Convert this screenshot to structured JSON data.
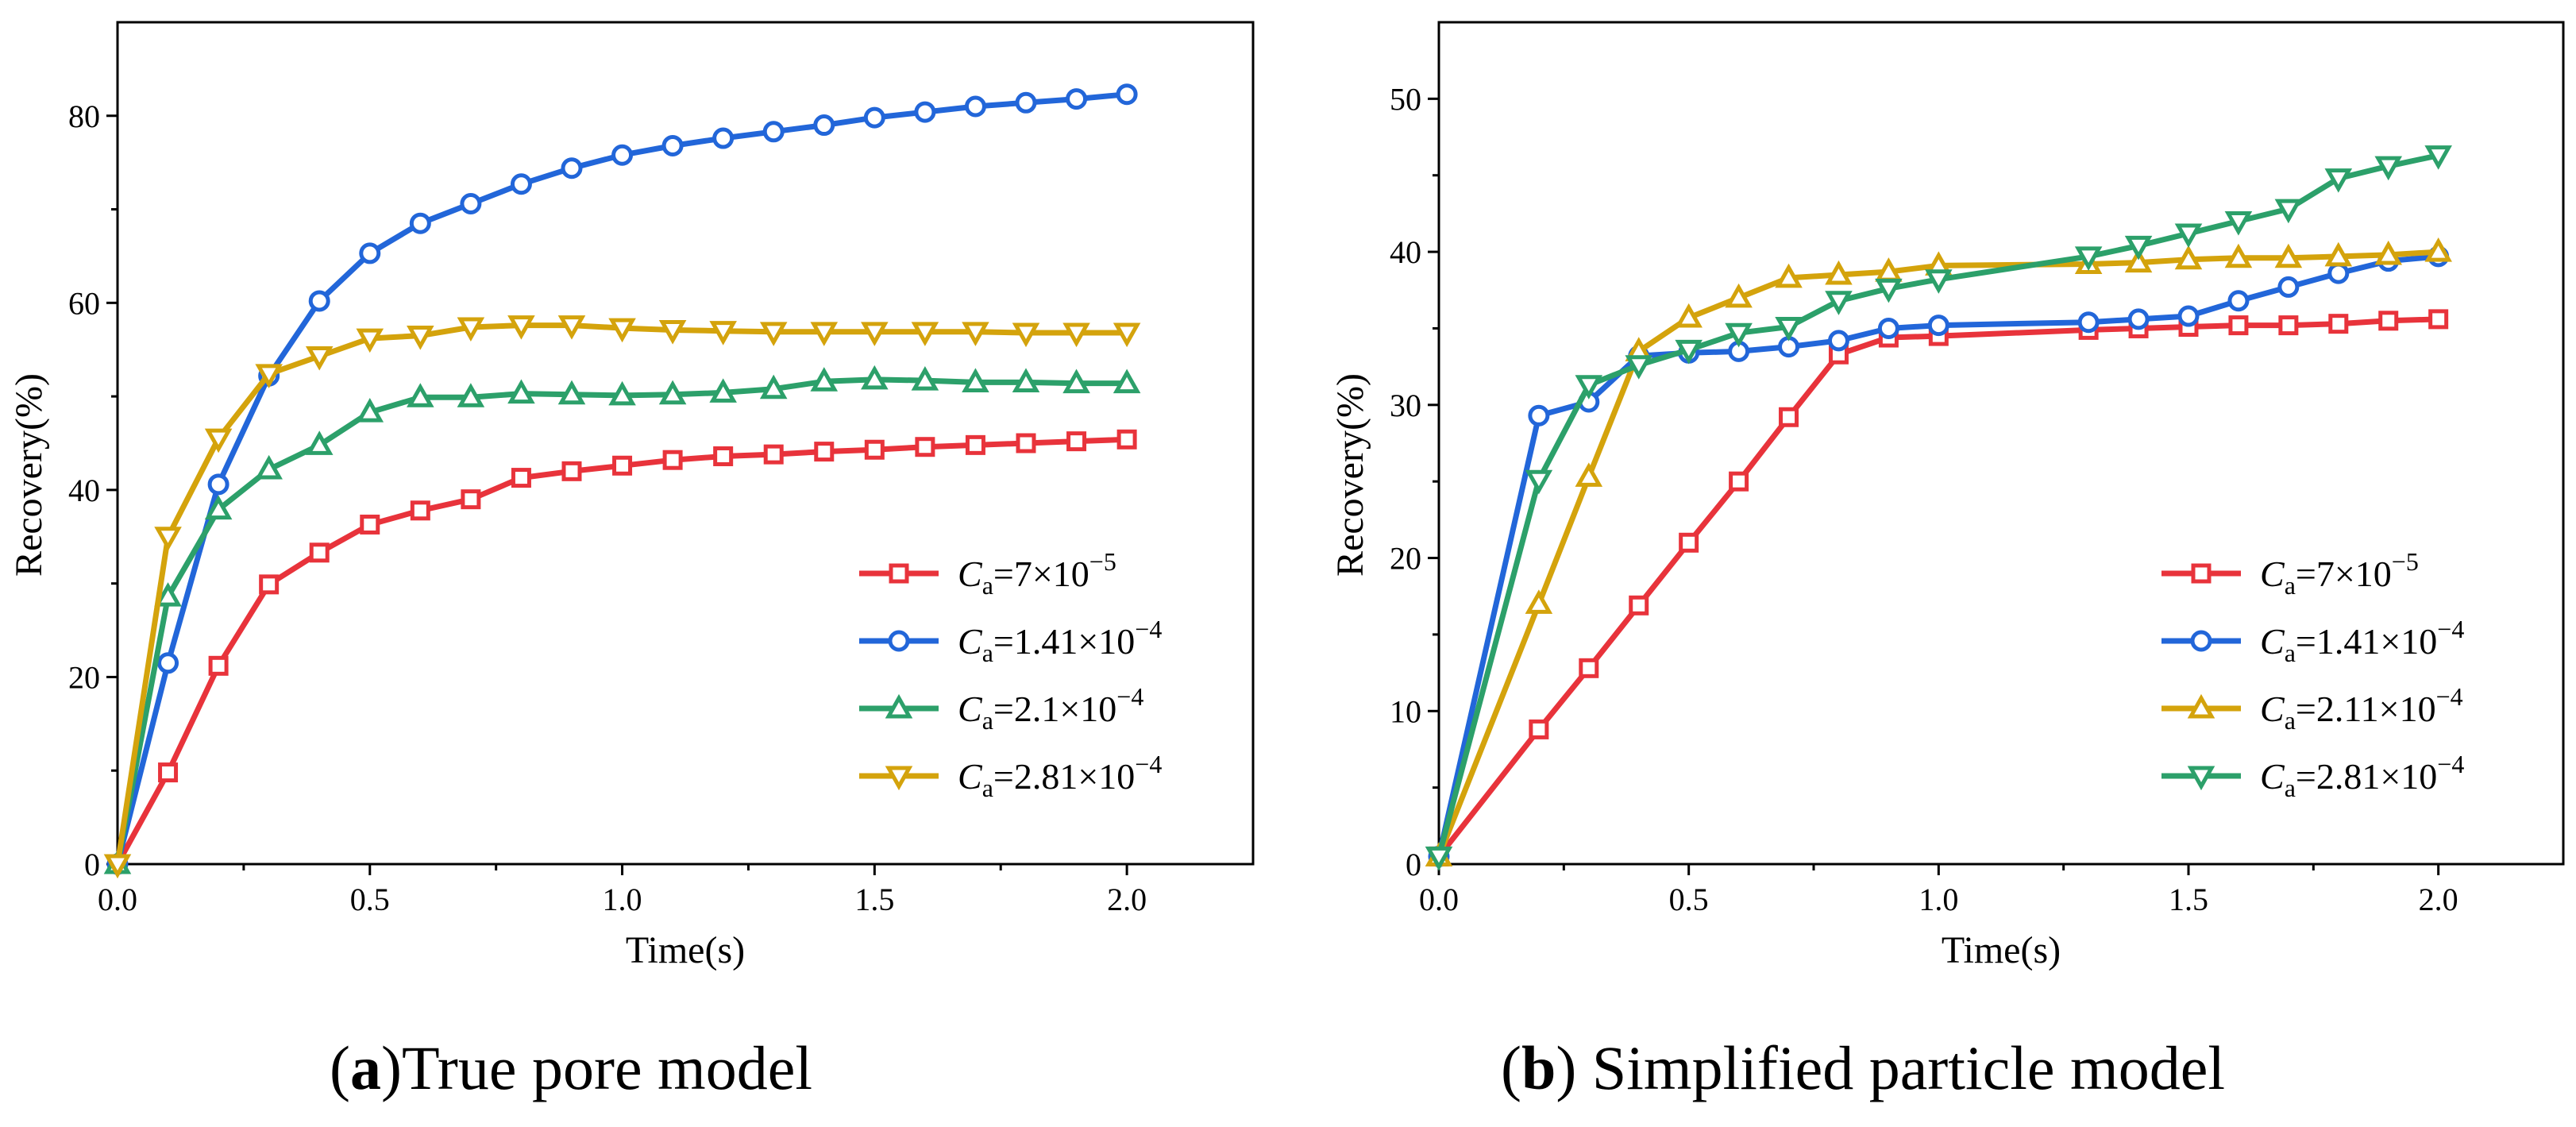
{
  "colors": {
    "red": "#E8333B",
    "blue": "#2266D9",
    "green": "#2CA06A",
    "gold": "#D4A30C"
  },
  "captions": {
    "a": {
      "letter": "a",
      "open": "(",
      "close": ")",
      "text": "True pore model"
    },
    "b": {
      "letter": "b",
      "open": "(",
      "close": ") ",
      "text": "Simplified particle model"
    }
  },
  "chart_data": [
    {
      "type": "line",
      "panel": "a",
      "title": "True pore model",
      "xlabel": "Time(s)",
      "ylabel": "Recovery(%)",
      "xlim": [
        0,
        2.25
      ],
      "ylim": [
        0,
        90
      ],
      "xticks": [
        0.0,
        0.5,
        1.0,
        1.5,
        2.0
      ],
      "xtick_labels": [
        "0.0",
        "0.5",
        "1.0",
        "1.5",
        "2.0"
      ],
      "yticks": [
        0,
        20,
        40,
        60,
        80
      ],
      "ytick_labels": [
        "0",
        "20",
        "40",
        "60",
        "80"
      ],
      "legend_position": "bottom-right",
      "series": [
        {
          "name": "Ca=7×10−5",
          "label_main": "=7×10",
          "label_exp": "−5",
          "color": "red",
          "marker": "square",
          "x": [
            0,
            0.1,
            0.2,
            0.3,
            0.4,
            0.5,
            0.6,
            0.7,
            0.8,
            0.9,
            1.0,
            1.1,
            1.2,
            1.3,
            1.4,
            1.5,
            1.6,
            1.7,
            1.8,
            1.9,
            2.0
          ],
          "y": [
            0,
            9.8,
            21.2,
            29.9,
            33.3,
            36.3,
            37.8,
            39.0,
            41.3,
            42.0,
            42.6,
            43.2,
            43.6,
            43.8,
            44.1,
            44.3,
            44.6,
            44.8,
            45.0,
            45.2,
            45.4
          ]
        },
        {
          "name": "Ca=1.41×10−4",
          "label_main": "=1.41×10",
          "label_exp": "−4",
          "color": "blue",
          "marker": "circle",
          "x": [
            0,
            0.1,
            0.2,
            0.3,
            0.4,
            0.5,
            0.6,
            0.7,
            0.8,
            0.9,
            1.0,
            1.1,
            1.2,
            1.3,
            1.4,
            1.5,
            1.6,
            1.7,
            1.8,
            1.9,
            2.0
          ],
          "y": [
            0,
            21.5,
            40.6,
            52.2,
            60.2,
            65.3,
            68.5,
            70.6,
            72.7,
            74.4,
            75.8,
            76.8,
            77.6,
            78.3,
            79.0,
            79.8,
            80.4,
            81.0,
            81.4,
            81.8,
            82.3
          ]
        },
        {
          "name": "Ca=2.1×10−4",
          "label_main": "=2.1×10",
          "label_exp": "−4",
          "color": "green",
          "marker": "triangle-up",
          "x": [
            0,
            0.1,
            0.2,
            0.3,
            0.4,
            0.5,
            0.6,
            0.7,
            0.8,
            0.9,
            1.0,
            1.1,
            1.2,
            1.3,
            1.4,
            1.5,
            1.6,
            1.7,
            1.8,
            1.9,
            2.0
          ],
          "y": [
            0,
            28.6,
            37.9,
            42.2,
            44.8,
            48.3,
            49.9,
            49.9,
            50.3,
            50.2,
            50.1,
            50.2,
            50.4,
            50.8,
            51.6,
            51.8,
            51.7,
            51.5,
            51.5,
            51.4,
            51.4
          ]
        },
        {
          "name": "Ca=2.81×10−4",
          "label_main": "=2.81×10",
          "label_exp": "−4",
          "color": "gold",
          "marker": "triangle-down",
          "x": [
            0,
            0.1,
            0.2,
            0.3,
            0.4,
            0.5,
            0.6,
            0.7,
            0.8,
            0.9,
            1.0,
            1.1,
            1.2,
            1.3,
            1.4,
            1.5,
            1.6,
            1.7,
            1.8,
            1.9,
            2.0
          ],
          "y": [
            0,
            35.0,
            45.5,
            52.4,
            54.3,
            56.2,
            56.5,
            57.4,
            57.6,
            57.6,
            57.3,
            57.1,
            57.0,
            56.9,
            56.9,
            56.9,
            56.9,
            56.9,
            56.8,
            56.8,
            56.8
          ]
        }
      ]
    },
    {
      "type": "line",
      "panel": "b",
      "title": "Simplified particle model",
      "xlabel": "Time(s)",
      "ylabel": "Recovery(%)",
      "xlim": [
        0,
        2.25
      ],
      "ylim": [
        0,
        55
      ],
      "xticks": [
        0.0,
        0.5,
        1.0,
        1.5,
        2.0
      ],
      "xtick_labels": [
        "0.0",
        "0.5",
        "1.0",
        "1.5",
        "2.0"
      ],
      "yticks": [
        0,
        10,
        20,
        30,
        40,
        50
      ],
      "ytick_labels": [
        "0",
        "10",
        "20",
        "30",
        "40",
        "50"
      ],
      "legend_position": "bottom-right",
      "series": [
        {
          "name": "Ca=7×10−5",
          "label_main": "=7×10",
          "label_exp": "−5",
          "color": "red",
          "marker": "square",
          "x": [
            0,
            0.2,
            0.3,
            0.4,
            0.5,
            0.6,
            0.7,
            0.8,
            0.9,
            1.0,
            1.3,
            1.4,
            1.5,
            1.6,
            1.7,
            1.8,
            1.9,
            2.0
          ],
          "y": [
            0.5,
            8.8,
            12.8,
            16.9,
            21.0,
            25.0,
            29.2,
            33.3,
            34.4,
            34.5,
            34.9,
            35.0,
            35.1,
            35.2,
            35.2,
            35.3,
            35.5,
            35.6
          ]
        },
        {
          "name": "Ca=1.41×10−4",
          "label_main": "=1.41×10",
          "label_exp": "−4",
          "color": "blue",
          "marker": "circle",
          "x": [
            0,
            0.2,
            0.3,
            0.4,
            0.5,
            0.6,
            0.7,
            0.8,
            0.9,
            1.0,
            1.3,
            1.4,
            1.5,
            1.6,
            1.7,
            1.8,
            1.9,
            2.0
          ],
          "y": [
            0.5,
            29.3,
            30.2,
            33.2,
            33.4,
            33.5,
            33.8,
            34.2,
            35.0,
            35.2,
            35.4,
            35.6,
            35.8,
            36.8,
            37.7,
            38.6,
            39.4,
            39.7
          ]
        },
        {
          "name": "Ca=2.11×10−4",
          "label_main": "=2.11×10",
          "label_exp": "−4",
          "color": "gold",
          "marker": "triangle-up",
          "x": [
            0,
            0.2,
            0.3,
            0.4,
            0.5,
            0.6,
            0.7,
            0.8,
            0.9,
            1.0,
            1.3,
            1.4,
            1.5,
            1.6,
            1.7,
            1.8,
            1.9,
            2.0
          ],
          "y": [
            0.5,
            17.0,
            25.3,
            33.5,
            35.7,
            37.0,
            38.3,
            38.5,
            38.7,
            39.1,
            39.2,
            39.3,
            39.5,
            39.6,
            39.6,
            39.7,
            39.8,
            40.0
          ]
        },
        {
          "name": "Ca=2.81×10−4",
          "label_main": "=2.81×10",
          "label_exp": "−4",
          "color": "green",
          "marker": "triangle-down",
          "x": [
            0,
            0.2,
            0.3,
            0.4,
            0.5,
            0.6,
            0.7,
            0.8,
            0.9,
            1.0,
            1.3,
            1.4,
            1.5,
            1.6,
            1.7,
            1.8,
            1.9,
            2.0
          ],
          "y": [
            0.5,
            25.1,
            31.3,
            32.6,
            33.6,
            34.7,
            35.1,
            36.8,
            37.6,
            38.2,
            39.7,
            40.4,
            41.2,
            42.0,
            42.8,
            44.8,
            45.6,
            46.3
          ]
        }
      ]
    }
  ]
}
